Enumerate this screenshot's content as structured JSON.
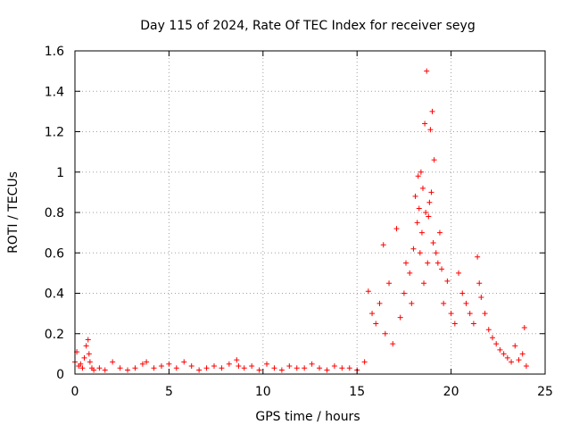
{
  "chart_data": {
    "type": "scatter",
    "title": "Day 115 of 2024, Rate Of TEC Index for receiver seyg",
    "xlabel": "GPS time / hours",
    "ylabel": "ROTI / TECUs",
    "xlim": [
      0,
      25
    ],
    "ylim": [
      0,
      1.6
    ],
    "xticks": [
      0,
      5,
      10,
      15,
      20,
      25
    ],
    "xtick_labels": [
      "0",
      "5",
      "10",
      "15",
      "20",
      "25"
    ],
    "yticks": [
      0,
      0.2,
      0.4,
      0.6,
      0.8,
      1,
      1.2,
      1.4,
      1.6
    ],
    "ytick_labels": [
      "0",
      "0.2",
      "0.4",
      "0.6",
      "0.8",
      "1",
      "1.2",
      "1.4",
      "1.6"
    ],
    "grid": true,
    "legend": "none",
    "marker": "+",
    "color": "#ff0000",
    "series": [
      {
        "x": [
          0.0,
          0.1,
          0.2,
          0.3,
          0.4,
          0.5,
          0.6,
          0.7,
          0.75,
          0.8,
          0.9,
          1.0,
          1.3,
          1.6,
          2.0,
          2.4,
          2.8,
          3.2,
          3.6,
          3.8,
          4.2,
          4.6,
          5.0,
          5.4,
          5.8,
          6.2,
          6.6,
          7.0,
          7.4,
          7.8,
          8.2,
          8.6,
          8.7,
          9.0,
          9.4,
          9.8,
          10.2,
          10.6,
          11.0,
          11.4,
          11.8,
          12.2,
          12.6,
          13.0,
          13.4,
          13.8,
          14.2,
          14.6,
          15.0,
          15.4,
          15.6,
          15.8,
          16.0,
          16.2,
          16.4,
          16.5,
          16.7,
          16.9,
          17.1,
          17.3,
          17.5,
          17.6,
          17.8,
          17.9,
          18.0,
          18.1,
          18.2,
          18.25,
          18.3,
          18.35,
          18.4,
          18.45,
          18.5,
          18.55,
          18.6,
          18.65,
          18.7,
          18.75,
          18.8,
          18.85,
          18.9,
          18.95,
          19.0,
          19.05,
          19.1,
          19.2,
          19.3,
          19.4,
          19.5,
          19.6,
          19.8,
          20.0,
          20.2,
          20.4,
          20.6,
          20.8,
          21.0,
          21.2,
          21.4,
          21.5,
          21.6,
          21.8,
          22.0,
          22.2,
          22.4,
          22.6,
          22.8,
          23.0,
          23.2,
          23.4,
          23.6,
          23.8,
          23.9,
          24.0
        ],
        "y": [
          0.06,
          0.11,
          0.04,
          0.05,
          0.03,
          0.08,
          0.14,
          0.17,
          0.1,
          0.06,
          0.03,
          0.02,
          0.03,
          0.02,
          0.06,
          0.03,
          0.02,
          0.03,
          0.05,
          0.06,
          0.03,
          0.04,
          0.05,
          0.03,
          0.06,
          0.04,
          0.02,
          0.03,
          0.04,
          0.03,
          0.05,
          0.07,
          0.04,
          0.03,
          0.04,
          0.02,
          0.05,
          0.03,
          0.02,
          0.04,
          0.03,
          0.03,
          0.05,
          0.03,
          0.02,
          0.04,
          0.03,
          0.03,
          0.02,
          0.06,
          0.41,
          0.3,
          0.25,
          0.35,
          0.64,
          0.2,
          0.45,
          0.15,
          0.72,
          0.28,
          0.4,
          0.55,
          0.5,
          0.35,
          0.62,
          0.88,
          0.75,
          0.98,
          0.82,
          0.6,
          1.0,
          0.7,
          0.92,
          0.45,
          1.24,
          0.8,
          1.5,
          0.55,
          0.78,
          0.85,
          1.21,
          0.9,
          1.3,
          0.65,
          1.06,
          0.6,
          0.55,
          0.7,
          0.52,
          0.35,
          0.46,
          0.3,
          0.25,
          0.5,
          0.4,
          0.35,
          0.3,
          0.25,
          0.58,
          0.45,
          0.38,
          0.3,
          0.22,
          0.18,
          0.15,
          0.12,
          0.1,
          0.08,
          0.06,
          0.14,
          0.07,
          0.1,
          0.23,
          0.04
        ]
      }
    ]
  }
}
